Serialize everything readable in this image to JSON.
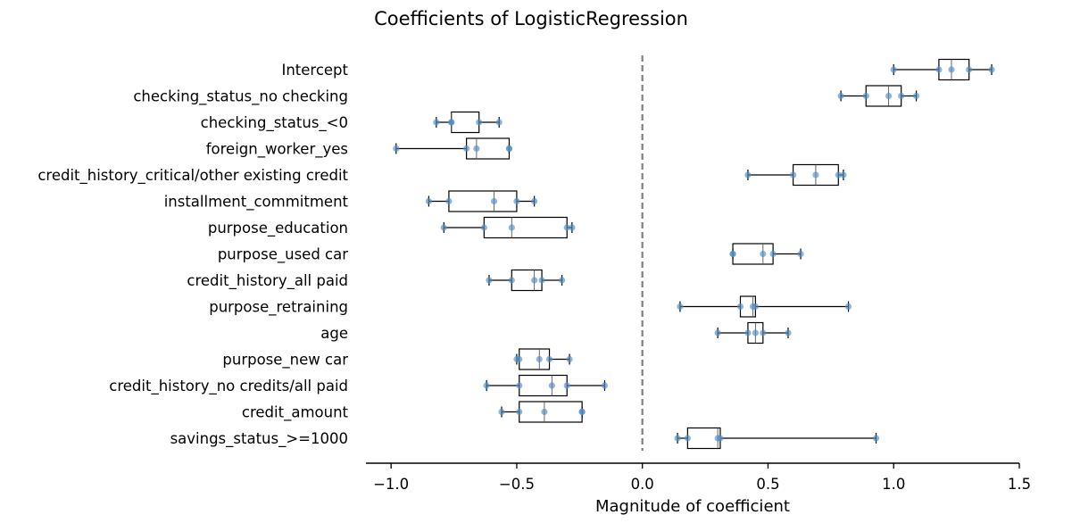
{
  "chart_data": {
    "type": "boxplot",
    "title": "Coefficients of LogisticRegression",
    "xlabel": "Magnitude of coefficient",
    "xlim": [
      -1.1,
      1.5
    ],
    "xticks": [
      -1.0,
      -0.5,
      0.0,
      0.5,
      1.0,
      1.5
    ],
    "xtick_labels": [
      "−1.0",
      "−0.5",
      "0.0",
      "0.5",
      "1.0",
      "1.5"
    ],
    "reference_line": {
      "x": 0.0,
      "style": "dashed",
      "color": "#808080"
    },
    "point_color": "#4f8dc4",
    "series": [
      {
        "label": "Intercept",
        "whisker_low": 1.0,
        "q1": 1.18,
        "median": 1.23,
        "q3": 1.3,
        "whisker_high": 1.39,
        "points": [
          1.0,
          1.18,
          1.23,
          1.3,
          1.39
        ]
      },
      {
        "label": "checking_status_no checking",
        "whisker_low": 0.79,
        "q1": 0.89,
        "median": 0.98,
        "q3": 1.03,
        "whisker_high": 1.09,
        "points": [
          0.79,
          0.89,
          0.98,
          1.03,
          1.09
        ]
      },
      {
        "label": "checking_status_<0",
        "whisker_low": -0.82,
        "q1": -0.76,
        "median": -0.76,
        "q3": -0.65,
        "whisker_high": -0.57,
        "points": [
          -0.82,
          -0.76,
          -0.76,
          -0.65,
          -0.57
        ]
      },
      {
        "label": "foreign_worker_yes",
        "whisker_low": -0.98,
        "q1": -0.7,
        "median": -0.66,
        "q3": -0.53,
        "whisker_high": -0.53,
        "points": [
          -0.98,
          -0.7,
          -0.66,
          -0.53,
          -0.53
        ]
      },
      {
        "label": "credit_history_critical/other existing credit",
        "whisker_low": 0.42,
        "q1": 0.6,
        "median": 0.69,
        "q3": 0.78,
        "whisker_high": 0.8,
        "points": [
          0.42,
          0.6,
          0.69,
          0.78,
          0.8
        ]
      },
      {
        "label": "installment_commitment",
        "whisker_low": -0.85,
        "q1": -0.77,
        "median": -0.59,
        "q3": -0.5,
        "whisker_high": -0.43,
        "points": [
          -0.85,
          -0.77,
          -0.59,
          -0.5,
          -0.43
        ]
      },
      {
        "label": "purpose_education",
        "whisker_low": -0.79,
        "q1": -0.63,
        "median": -0.52,
        "q3": -0.3,
        "whisker_high": -0.28,
        "points": [
          -0.79,
          -0.63,
          -0.52,
          -0.3,
          -0.28
        ]
      },
      {
        "label": "purpose_used car",
        "whisker_low": 0.36,
        "q1": 0.36,
        "median": 0.48,
        "q3": 0.52,
        "whisker_high": 0.63,
        "points": [
          0.36,
          0.36,
          0.48,
          0.52,
          0.63
        ]
      },
      {
        "label": "credit_history_all paid",
        "whisker_low": -0.61,
        "q1": -0.52,
        "median": -0.43,
        "q3": -0.4,
        "whisker_high": -0.32,
        "points": [
          -0.61,
          -0.52,
          -0.43,
          -0.4,
          -0.32
        ]
      },
      {
        "label": "purpose_retraining",
        "whisker_low": 0.15,
        "q1": 0.39,
        "median": 0.44,
        "q3": 0.45,
        "whisker_high": 0.82,
        "points": [
          0.15,
          0.39,
          0.44,
          0.45,
          0.82
        ]
      },
      {
        "label": "age",
        "whisker_low": 0.3,
        "q1": 0.42,
        "median": 0.45,
        "q3": 0.48,
        "whisker_high": 0.58,
        "points": [
          0.3,
          0.42,
          0.45,
          0.48,
          0.58
        ]
      },
      {
        "label": "purpose_new car",
        "whisker_low": -0.5,
        "q1": -0.49,
        "median": -0.41,
        "q3": -0.37,
        "whisker_high": -0.29,
        "points": [
          -0.5,
          -0.49,
          -0.41,
          -0.37,
          -0.29
        ]
      },
      {
        "label": "credit_history_no credits/all paid",
        "whisker_low": -0.62,
        "q1": -0.49,
        "median": -0.36,
        "q3": -0.3,
        "whisker_high": -0.15,
        "points": [
          -0.62,
          -0.49,
          -0.36,
          -0.3,
          -0.15
        ]
      },
      {
        "label": "credit_amount",
        "whisker_low": -0.56,
        "q1": -0.49,
        "median": -0.39,
        "q3": -0.24,
        "whisker_high": -0.24,
        "points": [
          -0.56,
          -0.49,
          -0.39,
          -0.24,
          -0.24
        ]
      },
      {
        "label": "savings_status_>=1000",
        "whisker_low": 0.14,
        "q1": 0.18,
        "median": 0.3,
        "q3": 0.31,
        "whisker_high": 0.93,
        "points": [
          0.14,
          0.18,
          0.3,
          0.31,
          0.93
        ]
      }
    ]
  }
}
